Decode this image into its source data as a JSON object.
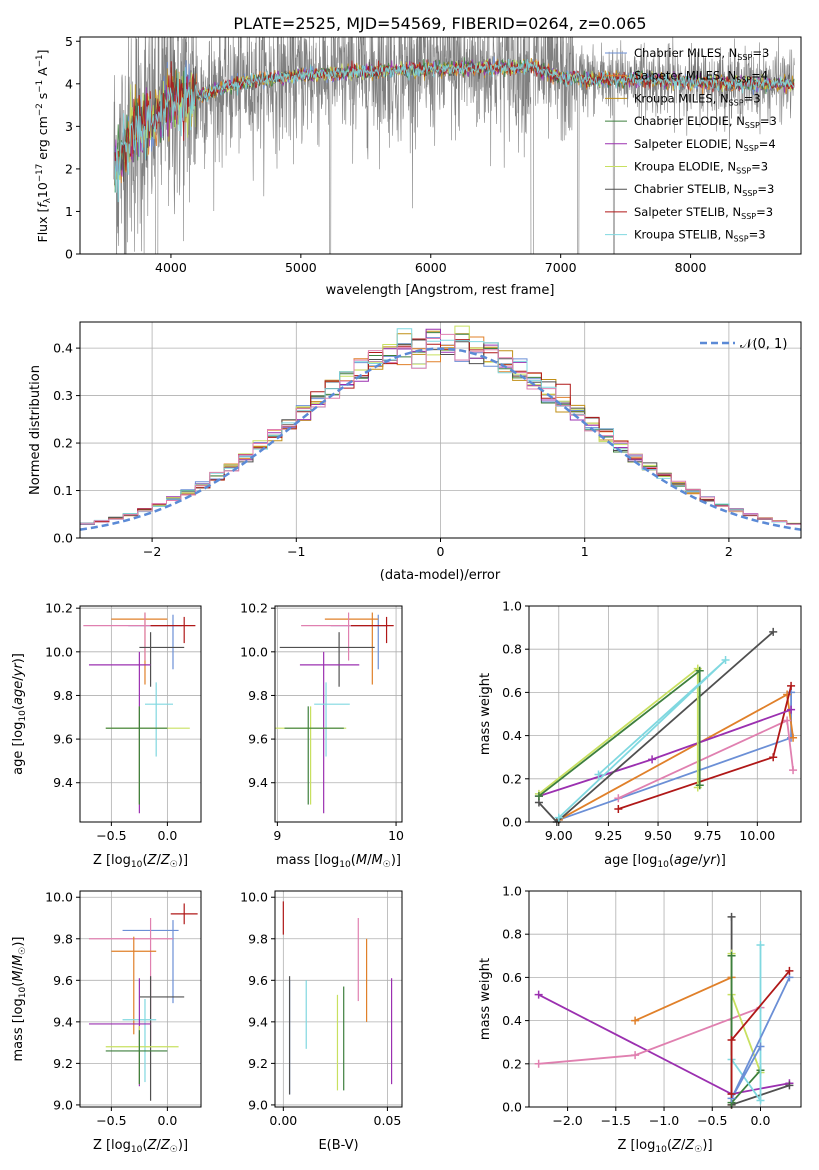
{
  "figure": {
    "title": "PLATE=2525, MJD=54569, FIBERID=0264, z=0.065"
  },
  "colors": {
    "chabrier_miles": "#6b8fd6",
    "salpeter_miles": "#e0802a",
    "kroupa_miles": "#c08f16",
    "chabrier_elodie": "#3d7f3d",
    "salpeter_elodie": "#9b30b0",
    "kroupa_elodie": "#c8e060",
    "chabrier_stelib": "#505050",
    "salpeter_stelib": "#b01818",
    "kroupa_stelib": "#80d8e0",
    "pink": "#e080b0",
    "data_gray": "#808080",
    "normal_curve": "#5b8ad6"
  },
  "chart_data": [
    {
      "id": "spectrum",
      "type": "line",
      "xlabel": "wavelength [Angstrom, rest frame]",
      "ylabel": "Flux [f_λ 10^-17 erg cm^-2 s^-1 A^-1]",
      "xlim": [
        3300,
        8850
      ],
      "ylim": [
        0,
        5.1
      ],
      "xticks": [
        4000,
        5000,
        6000,
        7000,
        8000
      ],
      "yticks": [
        0,
        1,
        2,
        3,
        4,
        5
      ],
      "grid": false,
      "legend_position": "top-right",
      "legend": [
        "Chabrier MILES, N_SSP=3",
        "Salpeter MILES, N_SSP=4",
        "Kroupa MILES, N_SSP=3",
        "Chabrier ELODIE, N_SSP=3",
        "Salpeter ELODIE, N_SSP=4",
        "Kroupa ELODIE, N_SSP=3",
        "Chabrier STELIB, N_SSP=3",
        "Salpeter STELIB, N_SSP=3",
        "Kroupa STELIB, N_SSP=3"
      ],
      "model_continuum": {
        "x": [
          3600,
          3700,
          3800,
          3900,
          4000,
          4100,
          4300,
          4500,
          4700,
          5000,
          5300,
          5600,
          6000,
          6500,
          6800,
          7000,
          7300,
          7600,
          8000,
          8400,
          8800
        ],
        "y": [
          2.2,
          2.9,
          3.0,
          3.3,
          3.7,
          3.6,
          3.8,
          4.0,
          4.1,
          4.2,
          4.25,
          4.3,
          4.35,
          4.38,
          4.4,
          4.15,
          4.1,
          4.1,
          4.05,
          4.0,
          4.0
        ]
      },
      "data_scatter_sigma": 0.9
    },
    {
      "id": "residuals",
      "type": "histogram",
      "xlabel": "(data-model)/error",
      "ylabel": "Normed distribution",
      "xlim": [
        -2.5,
        2.5
      ],
      "ylim": [
        0,
        0.455
      ],
      "xticks": [
        -2,
        -1,
        0,
        1,
        2
      ],
      "yticks": [
        0.0,
        0.1,
        0.2,
        0.3,
        0.4
      ],
      "grid": true,
      "legend_position": "top-right",
      "curve_label": "𝒩(0, 1)",
      "bin_width": 0.1
    },
    {
      "id": "age_vs_Z",
      "type": "errorbar",
      "xlabel": "Z [log10(Z/Z☉)]",
      "ylabel": "age  [log10(age/yr)]",
      "xlim": [
        -0.78,
        0.3
      ],
      "ylim": [
        9.22,
        10.21
      ],
      "xticks": [
        -0.5,
        0.0
      ],
      "yticks": [
        9.4,
        9.6,
        9.8,
        10.0,
        10.2
      ],
      "grid": true,
      "points": [
        {
          "c": "chabrier_miles",
          "x": 0.05,
          "y": 10.12,
          "xe": [
            0.4,
            0.08
          ],
          "ye": [
            0.2,
            0.05
          ]
        },
        {
          "c": "salpeter_miles",
          "x": -0.2,
          "y": 10.15,
          "xe": [
            0.3,
            0.2
          ],
          "ye": [
            0.3,
            0.03
          ]
        },
        {
          "c": "pink",
          "x": -0.2,
          "y": 10.12,
          "xe": [
            0.55,
            0.2
          ],
          "ye": [
            0.16,
            0.06
          ]
        },
        {
          "c": "salpeter_stelib",
          "x": 0.15,
          "y": 10.12,
          "xe": [
            0.3,
            0.1
          ],
          "ye": [
            0.08,
            0.04
          ]
        },
        {
          "c": "chabrier_stelib",
          "x": -0.15,
          "y": 10.02,
          "xe": [
            0.1,
            0.3
          ],
          "ye": [
            0.18,
            0.07
          ]
        },
        {
          "c": "salpeter_elodie",
          "x": -0.25,
          "y": 9.94,
          "xe": [
            0.45,
            0.1
          ],
          "ye": [
            0.68,
            0.06
          ]
        },
        {
          "c": "kroupa_stelib",
          "x": -0.1,
          "y": 9.76,
          "xe": [
            0.1,
            0.15
          ],
          "ye": [
            0.24,
            0.1
          ]
        },
        {
          "c": "kroupa_elodie",
          "x": -0.25,
          "y": 9.65,
          "xe": [
            0.3,
            0.45
          ],
          "ye": [
            0.35,
            0.1
          ]
        },
        {
          "c": "chabrier_elodie",
          "x": -0.25,
          "y": 9.65,
          "xe": [
            0.3,
            0.25
          ],
          "ye": [
            0.35,
            0.1
          ]
        }
      ]
    },
    {
      "id": "age_vs_mass",
      "type": "errorbar",
      "xlabel": "mass [log10(M/M☉)]",
      "ylabel": "",
      "xlim": [
        8.98,
        10.05
      ],
      "ylim": [
        9.22,
        10.21
      ],
      "xticks": [
        9,
        10
      ],
      "yticks": [
        9.4,
        9.6,
        9.8,
        10.0,
        10.2
      ],
      "grid": true,
      "points": [
        {
          "c": "chabrier_miles",
          "x": 9.85,
          "y": 10.12,
          "xe": [
            0.4,
            0.08
          ],
          "ye": [
            0.2,
            0.05
          ]
        },
        {
          "c": "salpeter_miles",
          "x": 9.8,
          "y": 10.15,
          "xe": [
            0.4,
            0.05
          ],
          "ye": [
            0.3,
            0.03
          ]
        },
        {
          "c": "pink",
          "x": 9.6,
          "y": 10.12,
          "xe": [
            0.4,
            0.2
          ],
          "ye": [
            0.16,
            0.06
          ]
        },
        {
          "c": "salpeter_stelib",
          "x": 9.92,
          "y": 10.12,
          "xe": [
            0.3,
            0.06
          ],
          "ye": [
            0.08,
            0.04
          ]
        },
        {
          "c": "chabrier_stelib",
          "x": 9.52,
          "y": 10.02,
          "xe": [
            0.5,
            0.3
          ],
          "ye": [
            0.18,
            0.07
          ]
        },
        {
          "c": "salpeter_elodie",
          "x": 9.39,
          "y": 9.94,
          "xe": [
            0.2,
            0.3
          ],
          "ye": [
            0.68,
            0.06
          ]
        },
        {
          "c": "kroupa_stelib",
          "x": 9.41,
          "y": 9.76,
          "xe": [
            0.1,
            0.2
          ],
          "ye": [
            0.24,
            0.1
          ]
        },
        {
          "c": "kroupa_elodie",
          "x": 9.28,
          "y": 9.65,
          "xe": [
            0.3,
            0.3
          ],
          "ye": [
            0.35,
            0.1
          ]
        },
        {
          "c": "chabrier_elodie",
          "x": 9.26,
          "y": 9.65,
          "xe": [
            0.2,
            0.3
          ],
          "ye": [
            0.35,
            0.1
          ]
        }
      ]
    },
    {
      "id": "massweight_vs_age",
      "type": "line",
      "xlabel": "age  [log10(age/yr)]",
      "ylabel": "mass weight",
      "xlim": [
        8.85,
        10.22
      ],
      "ylim": [
        0,
        1.0
      ],
      "xticks": [
        9.0,
        9.25,
        9.5,
        9.75,
        10.0
      ],
      "yticks": [
        0.0,
        0.2,
        0.4,
        0.6,
        0.8,
        1.0
      ],
      "grid": true,
      "series": [
        {
          "c": "chabrier_miles",
          "x": [
            9.0,
            10.17,
            10.17
          ],
          "y": [
            0.01,
            0.39,
            0.6
          ]
        },
        {
          "c": "salpeter_miles",
          "x": [
            9.0,
            10.15,
            10.18
          ],
          "y": [
            0.01,
            0.59,
            0.39
          ]
        },
        {
          "c": "pink",
          "x": [
            9.3,
            10.15,
            10.18
          ],
          "y": [
            0.11,
            0.47,
            0.24
          ]
        },
        {
          "c": "salpeter_stelib",
          "x": [
            9.3,
            10.08,
            10.17
          ],
          "y": [
            0.06,
            0.3,
            0.63
          ]
        },
        {
          "c": "salpeter_elodie",
          "x": [
            8.9,
            9.47,
            10.17
          ],
          "y": [
            0.12,
            0.29,
            0.52
          ]
        },
        {
          "c": "chabrier_stelib",
          "x": [
            8.9,
            8.99,
            10.08
          ],
          "y": [
            0.09,
            0.0,
            0.88
          ]
        },
        {
          "c": "kroupa_elodie",
          "x": [
            8.9,
            9.7,
            9.7
          ],
          "y": [
            0.13,
            0.71,
            0.16
          ]
        },
        {
          "c": "chabrier_elodie",
          "x": [
            8.9,
            9.71,
            9.71
          ],
          "y": [
            0.12,
            0.7,
            0.17
          ]
        },
        {
          "c": "kroupa_stelib",
          "x": [
            9.0,
            9.84,
            9.2
          ],
          "y": [
            0.02,
            0.75,
            0.22
          ]
        }
      ]
    },
    {
      "id": "mass_vs_Z",
      "type": "errorbar",
      "xlabel": "Z [log10(Z/Z☉)]",
      "ylabel": "mass [log10(M/M☉)]",
      "xlim": [
        -0.78,
        0.3
      ],
      "ylim": [
        8.99,
        10.03
      ],
      "xticks": [
        -0.5,
        0.0
      ],
      "yticks": [
        9.0,
        9.2,
        9.4,
        9.6,
        9.8,
        10.0
      ],
      "grid": true,
      "points": [
        {
          "c": "salpeter_stelib",
          "x": 0.15,
          "y": 9.92,
          "xe": [
            0.12,
            0.12
          ],
          "ye": [
            0.05,
            0.05
          ]
        },
        {
          "c": "chabrier_miles",
          "x": 0.05,
          "y": 9.84,
          "xe": [
            0.45,
            0.05
          ],
          "ye": [
            0.35,
            0.05
          ]
        },
        {
          "c": "pink",
          "x": -0.15,
          "y": 9.8,
          "xe": [
            0.55,
            0.2
          ],
          "ye": [
            0.5,
            0.1
          ]
        },
        {
          "c": "salpeter_miles",
          "x": -0.3,
          "y": 9.74,
          "xe": [
            0.2,
            0.2
          ],
          "ye": [
            0.4,
            0.07
          ]
        },
        {
          "c": "chabrier_stelib",
          "x": -0.15,
          "y": 9.52,
          "xe": [
            0.1,
            0.3
          ],
          "ye": [
            0.5,
            0.1
          ]
        },
        {
          "c": "kroupa_stelib",
          "x": -0.2,
          "y": 9.41,
          "xe": [
            0.2,
            0.1
          ],
          "ye": [
            0.3,
            0.1
          ]
        },
        {
          "c": "salpeter_elodie",
          "x": -0.25,
          "y": 9.39,
          "xe": [
            0.45,
            0.1
          ],
          "ye": [
            0.3,
            0.22
          ]
        },
        {
          "c": "kroupa_elodie",
          "x": -0.25,
          "y": 9.28,
          "xe": [
            0.3,
            0.35
          ],
          "ye": [
            0.18,
            0.1
          ]
        },
        {
          "c": "chabrier_elodie",
          "x": -0.25,
          "y": 9.26,
          "xe": [
            0.3,
            0.25
          ],
          "ye": [
            0.16,
            0.1
          ]
        }
      ]
    },
    {
      "id": "mass_vs_ebv",
      "type": "errorbar",
      "xlabel": "E(B-V)",
      "ylabel": "",
      "xlim": [
        -0.004,
        0.057
      ],
      "ylim": [
        8.99,
        10.03
      ],
      "xticks": [
        0.0,
        0.05
      ],
      "yticks": [
        9.0,
        9.2,
        9.4,
        9.6,
        9.8,
        10.0
      ],
      "grid": true,
      "points": [
        {
          "c": "salpeter_stelib",
          "x": 0.0,
          "y": 9.9,
          "xe": [
            0,
            0
          ],
          "ye": [
            0.08,
            0.08
          ]
        },
        {
          "c": "chabrier_miles",
          "x": 0.003,
          "y": 9.55,
          "xe": [
            0,
            0
          ],
          "ye": [
            0.5,
            0.05
          ]
        },
        {
          "c": "chabrier_stelib",
          "x": 0.003,
          "y": 9.55,
          "xe": [
            0,
            0
          ],
          "ye": [
            0.5,
            0.07
          ]
        },
        {
          "c": "kroupa_stelib",
          "x": 0.011,
          "y": 9.43,
          "xe": [
            0,
            0
          ],
          "ye": [
            0.16,
            0.17
          ]
        },
        {
          "c": "kroupa_elodie",
          "x": 0.026,
          "y": 9.3,
          "xe": [
            0,
            0
          ],
          "ye": [
            0.23,
            0.23
          ]
        },
        {
          "c": "chabrier_elodie",
          "x": 0.029,
          "y": 9.3,
          "xe": [
            0,
            0
          ],
          "ye": [
            0.23,
            0.27
          ]
        },
        {
          "c": "pink",
          "x": 0.036,
          "y": 9.7,
          "xe": [
            0,
            0
          ],
          "ye": [
            0.2,
            0.2
          ]
        },
        {
          "c": "salpeter_miles",
          "x": 0.04,
          "y": 9.6,
          "xe": [
            0,
            0
          ],
          "ye": [
            0.2,
            0.2
          ]
        },
        {
          "c": "salpeter_elodie",
          "x": 0.052,
          "y": 9.35,
          "xe": [
            0,
            0
          ],
          "ye": [
            0.25,
            0.26
          ]
        }
      ]
    },
    {
      "id": "massweight_vs_Z",
      "type": "line",
      "xlabel": "Z [log10(Z/Z☉)]",
      "ylabel": "mass weight",
      "xlim": [
        -2.4,
        0.42
      ],
      "ylim": [
        0,
        1.0
      ],
      "xticks": [
        -2.0,
        -1.5,
        -1.0,
        -0.5,
        0.0
      ],
      "yticks": [
        0.0,
        0.2,
        0.4,
        0.6,
        0.8,
        1.0
      ],
      "grid": true,
      "series": [
        {
          "c": "salpeter_elodie",
          "x": [
            -2.3,
            -0.3,
            0.3
          ],
          "y": [
            0.52,
            0.06,
            0.11
          ]
        },
        {
          "c": "pink",
          "x": [
            -2.3,
            -1.3,
            0.0
          ],
          "y": [
            0.2,
            0.24,
            0.46
          ]
        },
        {
          "c": "salpeter_miles",
          "x": [
            -1.3,
            -0.3,
            -0.3
          ],
          "y": [
            0.4,
            0.6,
            0.01
          ]
        },
        {
          "c": "chabrier_stelib",
          "x": [
            -0.3,
            -0.3,
            0.3
          ],
          "y": [
            0.88,
            0.01,
            0.1
          ]
        },
        {
          "c": "kroupa_elodie",
          "x": [
            -0.3,
            -0.3,
            0.0
          ],
          "y": [
            0.71,
            0.52,
            0.16
          ]
        },
        {
          "c": "chabrier_elodie",
          "x": [
            -0.3,
            -0.3,
            0.0
          ],
          "y": [
            0.7,
            0.02,
            0.17
          ]
        },
        {
          "c": "kroupa_stelib",
          "x": [
            0.0,
            0.0,
            -0.3
          ],
          "y": [
            0.75,
            0.03,
            0.22
          ]
        },
        {
          "c": "chabrier_miles",
          "x": [
            0.3,
            -0.3,
            0.0
          ],
          "y": [
            0.6,
            0.04,
            0.28
          ]
        },
        {
          "c": "salpeter_stelib",
          "x": [
            0.3,
            -0.3,
            -0.3
          ],
          "y": [
            0.63,
            0.31,
            0.06
          ]
        }
      ]
    }
  ]
}
